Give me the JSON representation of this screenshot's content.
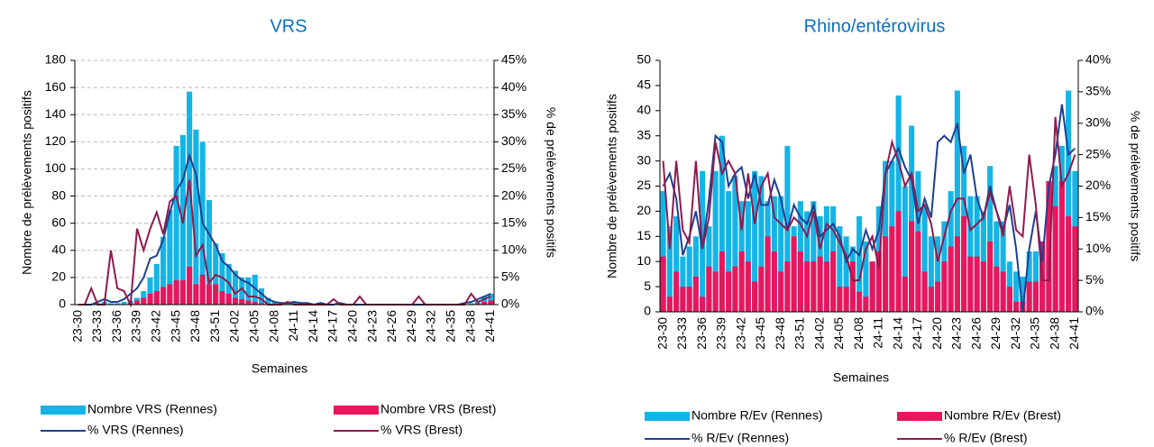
{
  "chart_data": [
    {
      "type": "combo",
      "title": "VRS",
      "ylabel": "Nombre de prélèvements positifs",
      "y2label": "% de prélèvements positifs",
      "xlabel": "Semaines",
      "categories": [
        "23-30",
        null,
        null,
        "23-33",
        null,
        null,
        "23-36",
        null,
        null,
        "23-39",
        null,
        null,
        "23-42",
        null,
        null,
        "23-45",
        null,
        null,
        "23-48",
        null,
        null,
        "23-51",
        null,
        null,
        "24-02",
        null,
        null,
        "24-05",
        null,
        null,
        "24-08",
        null,
        null,
        "24-11",
        null,
        null,
        "24-14",
        null,
        null,
        "24-17",
        null,
        null,
        "24-20",
        null,
        null,
        "24-23",
        null,
        null,
        "24-26",
        null,
        null,
        "24-29",
        null,
        null,
        "24-32",
        null,
        null,
        "24-35",
        null,
        null,
        "24-38",
        null,
        null,
        "24-41"
      ],
      "ylim": [
        0,
        180
      ],
      "yticks": [
        0,
        20,
        40,
        60,
        80,
        100,
        120,
        140,
        160,
        180
      ],
      "y2lim": [
        0,
        45
      ],
      "y2ticks": [
        {
          "value": 0,
          "label": "0%"
        },
        {
          "value": 5,
          "label": "5%"
        },
        {
          "value": 10,
          "label": "10%"
        },
        {
          "value": 15,
          "label": "15%"
        },
        {
          "value": 20,
          "label": "20%"
        },
        {
          "value": 25,
          "label": "25%"
        },
        {
          "value": 30,
          "label": "30%"
        },
        {
          "value": 35,
          "label": "35%"
        },
        {
          "value": 40,
          "label": "40%"
        },
        {
          "value": 45,
          "label": "45%"
        }
      ],
      "grid": true,
      "series": [
        {
          "name": "Nombre VRS (Rennes)",
          "type": "bar",
          "color": "#14b4e6",
          "values": [
            0,
            0,
            0,
            1,
            2,
            1,
            1,
            2,
            3,
            5,
            10,
            20,
            30,
            50,
            70,
            117,
            125,
            157,
            129,
            120,
            77,
            45,
            38,
            30,
            25,
            20,
            20,
            22,
            12,
            5,
            2,
            1,
            1,
            2,
            1,
            1,
            0,
            1,
            0,
            0,
            1,
            0,
            0,
            0,
            0,
            0,
            0,
            0,
            0,
            0,
            0,
            0,
            0,
            0,
            0,
            0,
            0,
            0,
            0,
            0,
            1,
            3,
            6,
            8
          ]
        },
        {
          "name": "Nombre VRS (Brest)",
          "type": "bar",
          "color": "#e8175d",
          "values": [
            0,
            0,
            0,
            0,
            0,
            0,
            0,
            0,
            1,
            3,
            5,
            8,
            10,
            13,
            15,
            18,
            18,
            28,
            15,
            22,
            15,
            15,
            10,
            8,
            5,
            4,
            3,
            2,
            1,
            0,
            0,
            0,
            0,
            0,
            0,
            0,
            0,
            0,
            0,
            0,
            0,
            0,
            0,
            0,
            0,
            0,
            0,
            0,
            0,
            0,
            0,
            0,
            0,
            0,
            0,
            0,
            0,
            0,
            0,
            0,
            0,
            1,
            2,
            3
          ]
        },
        {
          "name": "% VRS (Rennes)",
          "type": "line",
          "axis": "y2",
          "color": "#1f3f8f",
          "values": [
            0,
            0,
            0,
            0.5,
            1,
            0.5,
            0.5,
            1,
            2,
            3,
            5,
            8.5,
            9,
            12,
            17,
            21,
            23,
            27.5,
            24,
            15,
            13,
            11,
            8,
            7,
            5.5,
            4.5,
            4,
            3,
            2,
            1,
            0.5,
            0.3,
            0.3,
            0.5,
            0.3,
            0.3,
            0,
            0.3,
            0,
            0,
            0.3,
            0,
            0,
            0,
            0,
            0,
            0,
            0,
            0,
            0,
            0,
            0,
            0,
            0,
            0,
            0,
            0,
            0,
            0,
            0.3,
            0.5,
            1,
            1.5,
            2
          ]
        },
        {
          "name": "% VRS (Brest)",
          "type": "line",
          "axis": "y2",
          "color": "#8e1b4e",
          "values": [
            0,
            0,
            3,
            0,
            0,
            10,
            3,
            2.5,
            0,
            14,
            10,
            14,
            17,
            13,
            19,
            20,
            15,
            23,
            9,
            11,
            4,
            5.5,
            5,
            4,
            2,
            3,
            1.5,
            1.5,
            1,
            0,
            0,
            0,
            0.5,
            0,
            0,
            0,
            0,
            0,
            0,
            1,
            0,
            0,
            0,
            1.5,
            0,
            0,
            0,
            0,
            0,
            0,
            0,
            0,
            1.5,
            0,
            0,
            0,
            0,
            0,
            0,
            0,
            2,
            0.5,
            1,
            1.5
          ]
        }
      ]
    },
    {
      "type": "combo",
      "title": "Rhino/entérovirus",
      "ylabel": "Nombre de prélèvements positifs",
      "y2label": "% de prélèvements positifs",
      "xlabel": "Semaines",
      "categories": [
        "23-30",
        null,
        null,
        "23-33",
        null,
        null,
        "23-36",
        null,
        null,
        "23-39",
        null,
        null,
        "23-42",
        null,
        null,
        "23-45",
        null,
        null,
        "23-48",
        null,
        null,
        "23-51",
        null,
        null,
        "24-02",
        null,
        null,
        "24-05",
        null,
        null,
        "24-08",
        null,
        null,
        "24-11",
        null,
        null,
        "24-14",
        null,
        null,
        "24-17",
        null,
        null,
        "24-20",
        null,
        null,
        "24-23",
        null,
        null,
        "24-26",
        null,
        null,
        "24-29",
        null,
        null,
        "24-32",
        null,
        null,
        "24-35",
        null,
        null,
        "24-38",
        null,
        null,
        "24-41"
      ],
      "ylim": [
        0,
        50
      ],
      "yticks": [
        0,
        5,
        10,
        15,
        20,
        25,
        30,
        35,
        40,
        45,
        50
      ],
      "y2lim": [
        0,
        40
      ],
      "y2ticks": [
        {
          "value": 0,
          "label": "0%"
        },
        {
          "value": 5,
          "label": "5%"
        },
        {
          "value": 10,
          "label": "10%"
        },
        {
          "value": 15,
          "label": "15%"
        },
        {
          "value": 20,
          "label": "20%"
        },
        {
          "value": 25,
          "label": "25%"
        },
        {
          "value": 30,
          "label": "30%"
        },
        {
          "value": 35,
          "label": "35%"
        },
        {
          "value": 40,
          "label": "40%"
        }
      ],
      "grid": false,
      "series": [
        {
          "name": "Nombre R/Ev (Rennes)",
          "type": "bar",
          "color": "#14b4e6",
          "values": [
            24,
            17,
            19,
            11,
            13,
            15,
            28,
            17,
            28,
            35,
            24,
            27,
            22,
            22,
            28,
            27,
            22,
            23,
            23,
            33,
            17,
            22,
            20,
            22,
            19,
            21,
            21,
            17,
            15,
            13,
            19,
            14,
            10,
            21,
            30,
            30,
            43,
            25,
            37,
            28,
            21,
            15,
            15,
            18,
            24,
            44,
            33,
            23,
            23,
            20,
            29,
            18,
            18,
            10,
            8,
            7,
            12,
            12,
            14,
            10,
            29,
            33,
            44,
            28
          ]
        },
        {
          "name": "Nombre R/Ev (Brest)",
          "type": "bar",
          "color": "#e8175d",
          "values": [
            11,
            3,
            8,
            5,
            5,
            7,
            3,
            9,
            8,
            12,
            8,
            9,
            12,
            10,
            6,
            9,
            15,
            12,
            8,
            10,
            15,
            12,
            10,
            10,
            11,
            10,
            12,
            5,
            5,
            10,
            4,
            3,
            10,
            12,
            15,
            17,
            20,
            7,
            18,
            16,
            8,
            5,
            6,
            10,
            13,
            15,
            19,
            11,
            11,
            10,
            14,
            9,
            8,
            5,
            2,
            2,
            6,
            6,
            14,
            26,
            21,
            26,
            19,
            17
          ]
        },
        {
          "name": "% R/Ev (Rennes)",
          "type": "line",
          "axis": "y2",
          "color": "#1f3f8f",
          "values": [
            20,
            22,
            18,
            9,
            12,
            16,
            10,
            18,
            28,
            27,
            20,
            22,
            23,
            18,
            22,
            17,
            17,
            21,
            18,
            13,
            17,
            15,
            14,
            17,
            12,
            13,
            14,
            12,
            8,
            10,
            9,
            13,
            10,
            13,
            22,
            24,
            26,
            23,
            21,
            14,
            18,
            15,
            27,
            28,
            27,
            30,
            22,
            25,
            18,
            15,
            20,
            16,
            13,
            17,
            10,
            0,
            10,
            16,
            8,
            20,
            25,
            33,
            25,
            26
          ]
        },
        {
          "name": "% R/Ev (Brest)",
          "type": "line",
          "axis": "y2",
          "color": "#8e1b4e",
          "values": [
            24,
            10,
            24,
            13,
            11,
            24,
            10,
            15,
            27,
            22,
            24,
            22,
            13,
            22,
            14,
            20,
            22,
            15,
            14,
            13,
            15,
            14,
            12,
            16,
            10,
            14,
            13,
            11,
            9,
            5,
            5,
            10,
            12,
            7,
            22,
            27,
            24,
            20,
            22,
            16,
            17,
            14,
            8,
            12,
            16,
            18,
            18,
            13,
            14,
            15,
            19,
            16,
            12,
            20,
            13,
            12,
            25,
            17,
            5,
            5,
            31,
            20,
            22,
            25
          ]
        }
      ]
    }
  ]
}
